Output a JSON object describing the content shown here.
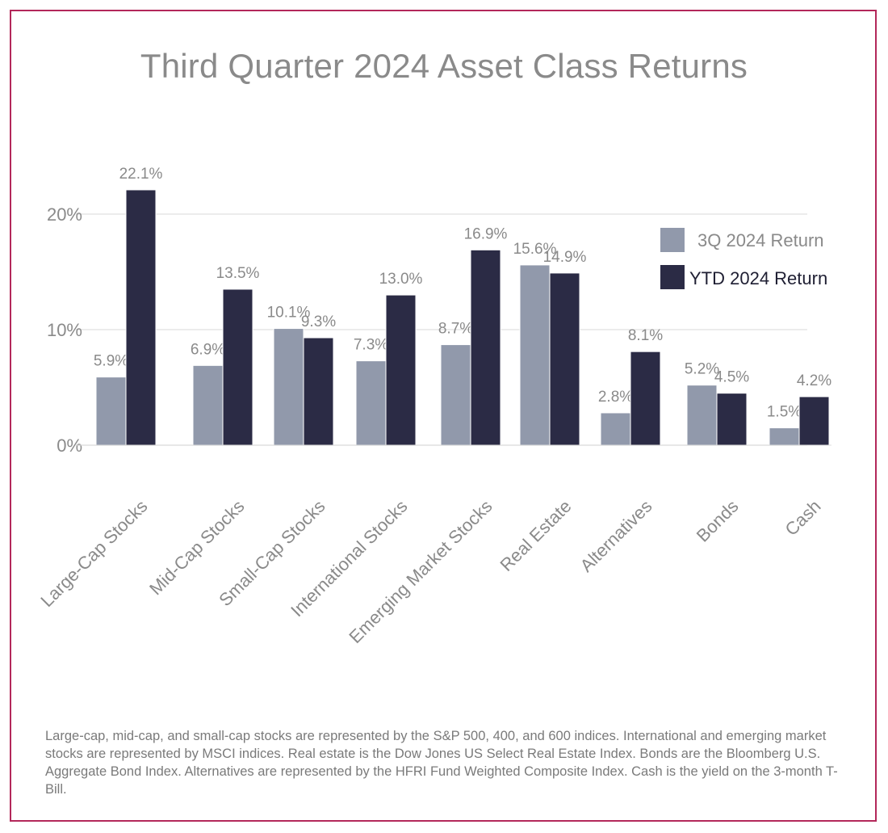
{
  "title": "Third Quarter 2024 Asset Class Returns",
  "footnote": "Large-cap, mid-cap, and small-cap stocks are represented by the S&P 500, 400, and 600 indices. International and emerging market stocks are represented by MSCI indices. Real estate is the Dow Jones US Select Real Estate Index. Bonds are the Bloomberg U.S. Aggregate Bond Index. Alternatives are represented by the HFRI Fund Weighted Composite Index. Cash is the yield on the 3-month T-Bill.",
  "colors": {
    "border": "#b3285a",
    "series_3q": "#9199ab",
    "series_ytd": "#2b2b45",
    "grid": "#e6e6e6",
    "text": "#8a8a8a"
  },
  "chart_data": {
    "type": "bar",
    "title": "Third Quarter 2024 Asset Class Returns",
    "categories": [
      "Large-Cap Stocks",
      "Mid-Cap Stocks",
      "Small-Cap Stocks",
      "International Stocks",
      "Emerging Market Stocks",
      "Real Estate",
      "Alternatives",
      "Bonds",
      "Cash"
    ],
    "series": [
      {
        "name": "3Q 2024 Return",
        "values": [
          5.9,
          6.9,
          10.1,
          7.3,
          8.7,
          15.6,
          2.8,
          5.2,
          1.5
        ],
        "labels": [
          "5.9%",
          "6.9%",
          "10.1%",
          "7.3%",
          "8.7%",
          "15.6%",
          "2.8%",
          "5.2%",
          "1.5%"
        ]
      },
      {
        "name": "YTD 2024 Return",
        "values": [
          22.1,
          13.5,
          9.3,
          13.0,
          16.9,
          14.9,
          8.1,
          4.5,
          4.2
        ],
        "labels": [
          "22.1%",
          "13.5%",
          "9.3%",
          "13.0%",
          "16.9%",
          "14.9%",
          "8.1%",
          "4.5%",
          "4.2%"
        ]
      }
    ],
    "y_ticks": [
      0,
      10,
      20
    ],
    "y_tick_labels": [
      "0%",
      "10%",
      "20%"
    ],
    "ylim": [
      0,
      20
    ],
    "grid": true,
    "legend": "top-right",
    "xlabel": "",
    "ylabel": ""
  }
}
